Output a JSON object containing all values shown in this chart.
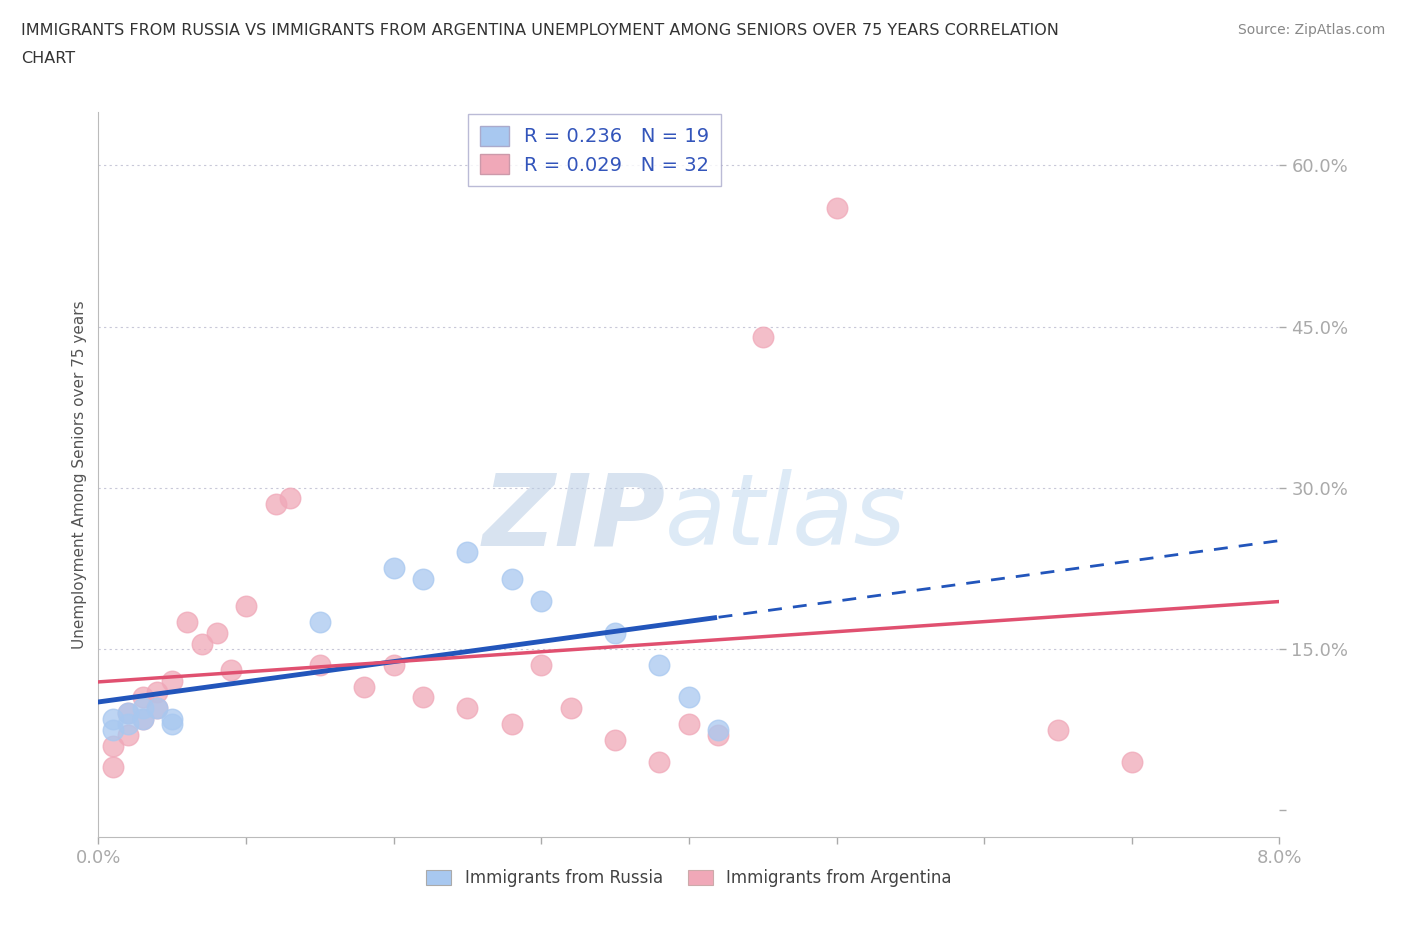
{
  "title_line1": "IMMIGRANTS FROM RUSSIA VS IMMIGRANTS FROM ARGENTINA UNEMPLOYMENT AMONG SENIORS OVER 75 YEARS CORRELATION",
  "title_line2": "CHART",
  "source": "Source: ZipAtlas.com",
  "ylabel": "Unemployment Among Seniors over 75 years",
  "y_ticks": [
    0.0,
    0.15,
    0.3,
    0.45,
    0.6
  ],
  "y_tick_labels": [
    "",
    "15.0%",
    "30.0%",
    "45.0%",
    "60.0%"
  ],
  "x_lim": [
    0.0,
    0.08
  ],
  "y_lim": [
    -0.025,
    0.65
  ],
  "russia_color": "#a8c8f0",
  "argentina_color": "#f0a8b8",
  "russia_line_color": "#2255bb",
  "argentina_line_color": "#e05070",
  "russia_R": 0.236,
  "russia_N": 19,
  "argentina_R": 0.029,
  "argentina_N": 32,
  "russia_x": [
    0.001,
    0.001,
    0.002,
    0.002,
    0.003,
    0.003,
    0.004,
    0.005,
    0.005,
    0.015,
    0.02,
    0.022,
    0.025,
    0.028,
    0.03,
    0.035,
    0.038,
    0.04,
    0.042
  ],
  "russia_y": [
    0.085,
    0.075,
    0.09,
    0.08,
    0.095,
    0.085,
    0.095,
    0.08,
    0.085,
    0.175,
    0.225,
    0.215,
    0.24,
    0.215,
    0.195,
    0.165,
    0.135,
    0.105,
    0.075
  ],
  "argentina_x": [
    0.001,
    0.001,
    0.002,
    0.002,
    0.003,
    0.003,
    0.004,
    0.004,
    0.005,
    0.006,
    0.007,
    0.008,
    0.009,
    0.01,
    0.012,
    0.013,
    0.015,
    0.018,
    0.02,
    0.022,
    0.025,
    0.028,
    0.03,
    0.032,
    0.035,
    0.038,
    0.04,
    0.042,
    0.045,
    0.05,
    0.065,
    0.07
  ],
  "argentina_y": [
    0.06,
    0.04,
    0.09,
    0.07,
    0.105,
    0.085,
    0.11,
    0.095,
    0.12,
    0.175,
    0.155,
    0.165,
    0.13,
    0.19,
    0.285,
    0.29,
    0.135,
    0.115,
    0.135,
    0.105,
    0.095,
    0.08,
    0.135,
    0.095,
    0.065,
    0.045,
    0.08,
    0.07,
    0.44,
    0.56,
    0.075,
    0.045
  ],
  "background_color": "#ffffff",
  "grid_color": "#c8c8d8",
  "watermark_zip": "ZIP",
  "watermark_atlas": "atlas",
  "legend_russia_label": "R = 0.236   N = 19",
  "legend_argentina_label": "R = 0.029   N = 32",
  "russia_bottom_label": "Immigrants from Russia",
  "argentina_bottom_label": "Immigrants from Argentina"
}
